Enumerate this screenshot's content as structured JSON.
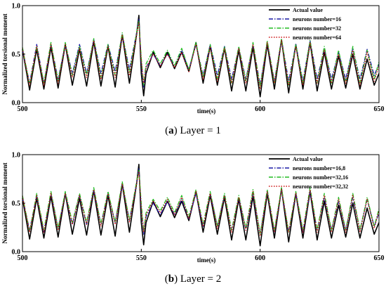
{
  "chart_data": [
    {
      "type": "line",
      "panel_label": "a",
      "caption_text": "Layer = 1",
      "xlabel": "time(s)",
      "ylabel": "Normalized torsional moment",
      "xlim": [
        500,
        650
      ],
      "ylim": [
        0,
        1
      ],
      "xticks": [
        "500",
        "550",
        "600",
        "650"
      ],
      "yticks": [
        "0.0",
        "0.5",
        "1.0"
      ],
      "legend_position": "top-right",
      "series": [
        {
          "name": "Actual value",
          "color": "#000000",
          "dash": "solid",
          "x": [
            500,
            503,
            506,
            509,
            512,
            515,
            518,
            521,
            524,
            527,
            530,
            533,
            536,
            539,
            542,
            545,
            548,
            549,
            550,
            551,
            552,
            555,
            558,
            561,
            564,
            567,
            570,
            573,
            576,
            579,
            582,
            585,
            588,
            591,
            594,
            597,
            600,
            603,
            606,
            609,
            612,
            615,
            618,
            621,
            624,
            627,
            630,
            633,
            636,
            639,
            642,
            645,
            648,
            650
          ],
          "y": [
            0.55,
            0.13,
            0.55,
            0.14,
            0.57,
            0.15,
            0.6,
            0.18,
            0.55,
            0.17,
            0.63,
            0.17,
            0.58,
            0.16,
            0.7,
            0.2,
            0.7,
            0.9,
            0.3,
            0.07,
            0.3,
            0.52,
            0.36,
            0.52,
            0.35,
            0.52,
            0.32,
            0.62,
            0.2,
            0.58,
            0.18,
            0.56,
            0.12,
            0.54,
            0.12,
            0.57,
            0.06,
            0.6,
            0.14,
            0.65,
            0.1,
            0.6,
            0.14,
            0.62,
            0.12,
            0.52,
            0.14,
            0.48,
            0.15,
            0.5,
            0.14,
            0.45,
            0.18,
            0.3
          ]
        },
        {
          "name": "neurons number=16",
          "color": "#1a1aa6",
          "dash": "dashdot",
          "x": [
            500,
            503,
            506,
            509,
            512,
            515,
            518,
            521,
            524,
            527,
            530,
            533,
            536,
            539,
            542,
            545,
            548,
            549,
            550,
            551,
            552,
            555,
            558,
            561,
            564,
            567,
            570,
            573,
            576,
            579,
            582,
            585,
            588,
            591,
            594,
            597,
            600,
            603,
            606,
            609,
            612,
            615,
            618,
            621,
            624,
            627,
            630,
            633,
            636,
            639,
            642,
            645,
            648,
            650
          ],
          "y": [
            0.55,
            0.2,
            0.6,
            0.2,
            0.6,
            0.24,
            0.6,
            0.3,
            0.6,
            0.3,
            0.65,
            0.3,
            0.6,
            0.32,
            0.7,
            0.34,
            0.72,
            0.86,
            0.42,
            0.16,
            0.36,
            0.5,
            0.38,
            0.5,
            0.38,
            0.54,
            0.34,
            0.6,
            0.28,
            0.6,
            0.28,
            0.58,
            0.24,
            0.56,
            0.24,
            0.6,
            0.18,
            0.62,
            0.22,
            0.65,
            0.22,
            0.6,
            0.22,
            0.64,
            0.24,
            0.56,
            0.24,
            0.52,
            0.24,
            0.56,
            0.24,
            0.55,
            0.28,
            0.4
          ]
        },
        {
          "name": "neurons number=32",
          "color": "#22bb22",
          "dash": "dashdot",
          "x": [
            500,
            503,
            506,
            509,
            512,
            515,
            518,
            521,
            524,
            527,
            530,
            533,
            536,
            539,
            542,
            545,
            548,
            549,
            550,
            551,
            552,
            555,
            558,
            561,
            564,
            567,
            570,
            573,
            576,
            579,
            582,
            585,
            588,
            591,
            594,
            597,
            600,
            603,
            606,
            609,
            612,
            615,
            618,
            621,
            624,
            627,
            630,
            633,
            636,
            639,
            642,
            645,
            648,
            650
          ],
          "y": [
            0.57,
            0.18,
            0.58,
            0.2,
            0.62,
            0.22,
            0.62,
            0.28,
            0.58,
            0.28,
            0.66,
            0.26,
            0.6,
            0.28,
            0.72,
            0.3,
            0.72,
            0.84,
            0.46,
            0.18,
            0.4,
            0.54,
            0.4,
            0.54,
            0.38,
            0.56,
            0.34,
            0.62,
            0.26,
            0.6,
            0.24,
            0.58,
            0.2,
            0.58,
            0.22,
            0.62,
            0.16,
            0.64,
            0.2,
            0.66,
            0.18,
            0.6,
            0.2,
            0.64,
            0.2,
            0.58,
            0.2,
            0.54,
            0.2,
            0.58,
            0.2,
            0.54,
            0.24,
            0.42
          ]
        },
        {
          "name": "neurons number=64",
          "color": "#cc1111",
          "dash": "dotted",
          "x": [
            500,
            503,
            506,
            509,
            512,
            515,
            518,
            521,
            524,
            527,
            530,
            533,
            536,
            539,
            542,
            545,
            548,
            549,
            550,
            551,
            552,
            555,
            558,
            561,
            564,
            567,
            570,
            573,
            576,
            579,
            582,
            585,
            588,
            591,
            594,
            597,
            600,
            603,
            606,
            609,
            612,
            615,
            618,
            621,
            624,
            627,
            630,
            633,
            636,
            639,
            642,
            645,
            648,
            650
          ],
          "y": [
            0.56,
            0.18,
            0.58,
            0.18,
            0.6,
            0.2,
            0.6,
            0.26,
            0.56,
            0.26,
            0.64,
            0.24,
            0.58,
            0.26,
            0.7,
            0.28,
            0.7,
            0.82,
            0.44,
            0.2,
            0.36,
            0.5,
            0.38,
            0.5,
            0.36,
            0.52,
            0.32,
            0.6,
            0.24,
            0.58,
            0.22,
            0.56,
            0.2,
            0.56,
            0.2,
            0.6,
            0.14,
            0.62,
            0.2,
            0.64,
            0.18,
            0.58,
            0.18,
            0.62,
            0.2,
            0.54,
            0.2,
            0.5,
            0.2,
            0.54,
            0.18,
            0.52,
            0.22,
            0.38
          ]
        }
      ]
    },
    {
      "type": "line",
      "panel_label": "b",
      "caption_text": "Layer = 2",
      "xlabel": "time(s)",
      "ylabel": "Normalized torsional moment",
      "xlim": [
        500,
        650
      ],
      "ylim": [
        0,
        1
      ],
      "xticks": [
        "500",
        "550",
        "600",
        "650"
      ],
      "yticks": [
        "0.0",
        "0.5",
        "1.0"
      ],
      "legend_position": "top-right",
      "series": [
        {
          "name": "Actual value",
          "color": "#000000",
          "dash": "solid",
          "x": [
            500,
            503,
            506,
            509,
            512,
            515,
            518,
            521,
            524,
            527,
            530,
            533,
            536,
            539,
            542,
            545,
            548,
            549,
            550,
            551,
            552,
            555,
            558,
            561,
            564,
            567,
            570,
            573,
            576,
            579,
            582,
            585,
            588,
            591,
            594,
            597,
            600,
            603,
            606,
            609,
            612,
            615,
            618,
            621,
            624,
            627,
            630,
            633,
            636,
            639,
            642,
            645,
            648,
            650
          ],
          "y": [
            0.55,
            0.13,
            0.55,
            0.14,
            0.57,
            0.15,
            0.6,
            0.18,
            0.55,
            0.17,
            0.63,
            0.17,
            0.58,
            0.16,
            0.7,
            0.2,
            0.7,
            0.9,
            0.3,
            0.07,
            0.3,
            0.52,
            0.36,
            0.52,
            0.35,
            0.52,
            0.32,
            0.62,
            0.2,
            0.58,
            0.18,
            0.56,
            0.12,
            0.54,
            0.12,
            0.57,
            0.06,
            0.6,
            0.14,
            0.65,
            0.1,
            0.6,
            0.14,
            0.62,
            0.12,
            0.52,
            0.14,
            0.48,
            0.15,
            0.5,
            0.14,
            0.45,
            0.18,
            0.3
          ]
        },
        {
          "name": "neurons number=16,8",
          "color": "#1a1aa6",
          "dash": "dashdot",
          "x": [
            500,
            503,
            506,
            509,
            512,
            515,
            518,
            521,
            524,
            527,
            530,
            533,
            536,
            539,
            542,
            545,
            548,
            549,
            550,
            551,
            552,
            555,
            558,
            561,
            564,
            567,
            570,
            573,
            576,
            579,
            582,
            585,
            588,
            591,
            594,
            597,
            600,
            603,
            606,
            609,
            612,
            615,
            618,
            621,
            624,
            627,
            630,
            633,
            636,
            639,
            642,
            645,
            648,
            650
          ],
          "y": [
            0.56,
            0.22,
            0.58,
            0.2,
            0.6,
            0.24,
            0.6,
            0.28,
            0.58,
            0.28,
            0.64,
            0.28,
            0.6,
            0.3,
            0.7,
            0.32,
            0.7,
            0.86,
            0.44,
            0.18,
            0.36,
            0.5,
            0.38,
            0.52,
            0.38,
            0.54,
            0.34,
            0.6,
            0.26,
            0.6,
            0.26,
            0.58,
            0.22,
            0.56,
            0.22,
            0.6,
            0.18,
            0.62,
            0.2,
            0.64,
            0.2,
            0.6,
            0.2,
            0.62,
            0.22,
            0.56,
            0.22,
            0.52,
            0.22,
            0.56,
            0.22,
            0.54,
            0.26,
            0.4
          ]
        },
        {
          "name": "neurons number=32,16",
          "color": "#22bb22",
          "dash": "dashdot",
          "x": [
            500,
            503,
            506,
            509,
            512,
            515,
            518,
            521,
            524,
            527,
            530,
            533,
            536,
            539,
            542,
            545,
            548,
            549,
            550,
            551,
            552,
            555,
            558,
            561,
            564,
            567,
            570,
            573,
            576,
            579,
            582,
            585,
            588,
            591,
            594,
            597,
            600,
            603,
            606,
            609,
            612,
            615,
            618,
            621,
            624,
            627,
            630,
            633,
            636,
            639,
            642,
            645,
            648,
            650
          ],
          "y": [
            0.58,
            0.2,
            0.6,
            0.22,
            0.62,
            0.24,
            0.62,
            0.3,
            0.6,
            0.3,
            0.66,
            0.28,
            0.62,
            0.3,
            0.72,
            0.32,
            0.72,
            0.84,
            0.5,
            0.2,
            0.4,
            0.54,
            0.42,
            0.56,
            0.4,
            0.58,
            0.36,
            0.64,
            0.28,
            0.62,
            0.26,
            0.6,
            0.22,
            0.58,
            0.24,
            0.64,
            0.18,
            0.64,
            0.22,
            0.66,
            0.2,
            0.62,
            0.22,
            0.66,
            0.22,
            0.6,
            0.22,
            0.56,
            0.22,
            0.6,
            0.22,
            0.56,
            0.26,
            0.44
          ]
        },
        {
          "name": "neurons number=32,32",
          "color": "#cc1111",
          "dash": "dotted",
          "x": [
            500,
            503,
            506,
            509,
            512,
            515,
            518,
            521,
            524,
            527,
            530,
            533,
            536,
            539,
            542,
            545,
            548,
            549,
            550,
            551,
            552,
            555,
            558,
            561,
            564,
            567,
            570,
            573,
            576,
            579,
            582,
            585,
            588,
            591,
            594,
            597,
            600,
            603,
            606,
            609,
            612,
            615,
            618,
            621,
            624,
            627,
            630,
            633,
            636,
            639,
            642,
            645,
            648,
            650
          ],
          "y": [
            0.57,
            0.2,
            0.58,
            0.2,
            0.6,
            0.22,
            0.6,
            0.28,
            0.58,
            0.28,
            0.64,
            0.26,
            0.6,
            0.28,
            0.7,
            0.3,
            0.7,
            0.82,
            0.46,
            0.2,
            0.38,
            0.52,
            0.4,
            0.54,
            0.38,
            0.56,
            0.34,
            0.62,
            0.26,
            0.6,
            0.24,
            0.58,
            0.2,
            0.56,
            0.22,
            0.62,
            0.16,
            0.62,
            0.2,
            0.64,
            0.2,
            0.6,
            0.2,
            0.64,
            0.2,
            0.58,
            0.2,
            0.54,
            0.2,
            0.58,
            0.2,
            0.54,
            0.24,
            0.42
          ]
        }
      ]
    }
  ]
}
